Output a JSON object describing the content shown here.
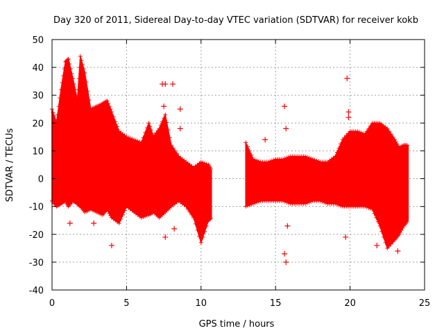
{
  "chart_data": {
    "type": "scatter",
    "title": "Day 320 of 2011, Sidereal Day-to-day VTEC variation (SDTVAR) for receiver kokb",
    "xlabel": "GPS time / hours",
    "ylabel": "SDTVAR / TECUs",
    "xlim": [
      0,
      25
    ],
    "ylim": [
      -40,
      50
    ],
    "x_ticks": [
      0,
      5,
      10,
      15,
      20,
      25
    ],
    "y_ticks": [
      -40,
      -30,
      -20,
      -10,
      0,
      10,
      20,
      30,
      40,
      50
    ],
    "grid": true,
    "series": [
      {
        "name": "SDTVAR",
        "color": "#ff0000",
        "marker": "+",
        "envelope_x": [
          0,
          0.3,
          0.6,
          0.9,
          1.1,
          1.4,
          1.7,
          1.9,
          2.2,
          2.6,
          3.0,
          3.4,
          3.7,
          4.0,
          4.5,
          5.0,
          5.5,
          6.0,
          6.5,
          6.8,
          7.2,
          7.6,
          8.0,
          8.5,
          9.0,
          9.5,
          10.0,
          10.5,
          10.7
        ],
        "envelope_upper": [
          25,
          20,
          32,
          42,
          43,
          36,
          28,
          44,
          38,
          25,
          26,
          27,
          28,
          24,
          17,
          15,
          14,
          13,
          20,
          15,
          18,
          23,
          12,
          8,
          6,
          4,
          6,
          5,
          3
        ],
        "envelope_lower": [
          -8,
          -10,
          -9,
          -8,
          -10,
          -8,
          -9,
          -10,
          -12,
          -11,
          -12,
          -13,
          -11,
          -14,
          -16,
          -10,
          -12,
          -14,
          -13,
          -12,
          -14,
          -12,
          -10,
          -8,
          -10,
          -14,
          -23,
          -15,
          -14
        ],
        "envelope_x_2": [
          13.0,
          13.5,
          14.0,
          14.5,
          15.0,
          15.5,
          16.0,
          16.5,
          17.0,
          17.5,
          18.0,
          18.5,
          19.0,
          19.5,
          20.0,
          20.5,
          21.0,
          21.5,
          22.0,
          22.5,
          23.0,
          23.3,
          23.6,
          23.9
        ],
        "envelope_upper_2": [
          13,
          7,
          6,
          6,
          7,
          7,
          8,
          8,
          8,
          7,
          6,
          6,
          8,
          14,
          17,
          17,
          16,
          20,
          20,
          18,
          14,
          11,
          12,
          12
        ],
        "envelope_lower_2": [
          -10,
          -9,
          -8,
          -8,
          -8,
          -8,
          -9,
          -9,
          -9,
          -8,
          -8,
          -9,
          -9,
          -10,
          -10,
          -10,
          -10,
          -11,
          -17,
          -25,
          -22,
          -20,
          -17,
          -15
        ],
        "outliers": [
          {
            "x": 7.4,
            "y": 34
          },
          {
            "x": 7.6,
            "y": 34
          },
          {
            "x": 8.1,
            "y": 34
          },
          {
            "x": 7.5,
            "y": 26
          },
          {
            "x": 8.6,
            "y": 25
          },
          {
            "x": 8.6,
            "y": 18
          },
          {
            "x": 4.0,
            "y": -24
          },
          {
            "x": 1.2,
            "y": -16
          },
          {
            "x": 2.8,
            "y": -16
          },
          {
            "x": 7.6,
            "y": -21
          },
          {
            "x": 8.2,
            "y": -18
          },
          {
            "x": 14.3,
            "y": 14
          },
          {
            "x": 15.6,
            "y": 26
          },
          {
            "x": 15.7,
            "y": 18
          },
          {
            "x": 15.6,
            "y": -27
          },
          {
            "x": 15.7,
            "y": -30
          },
          {
            "x": 15.8,
            "y": -17
          },
          {
            "x": 19.8,
            "y": 36
          },
          {
            "x": 19.9,
            "y": 24
          },
          {
            "x": 19.9,
            "y": 22
          },
          {
            "x": 19.7,
            "y": -21
          },
          {
            "x": 21.8,
            "y": -24
          },
          {
            "x": 23.2,
            "y": -26
          }
        ]
      }
    ]
  }
}
